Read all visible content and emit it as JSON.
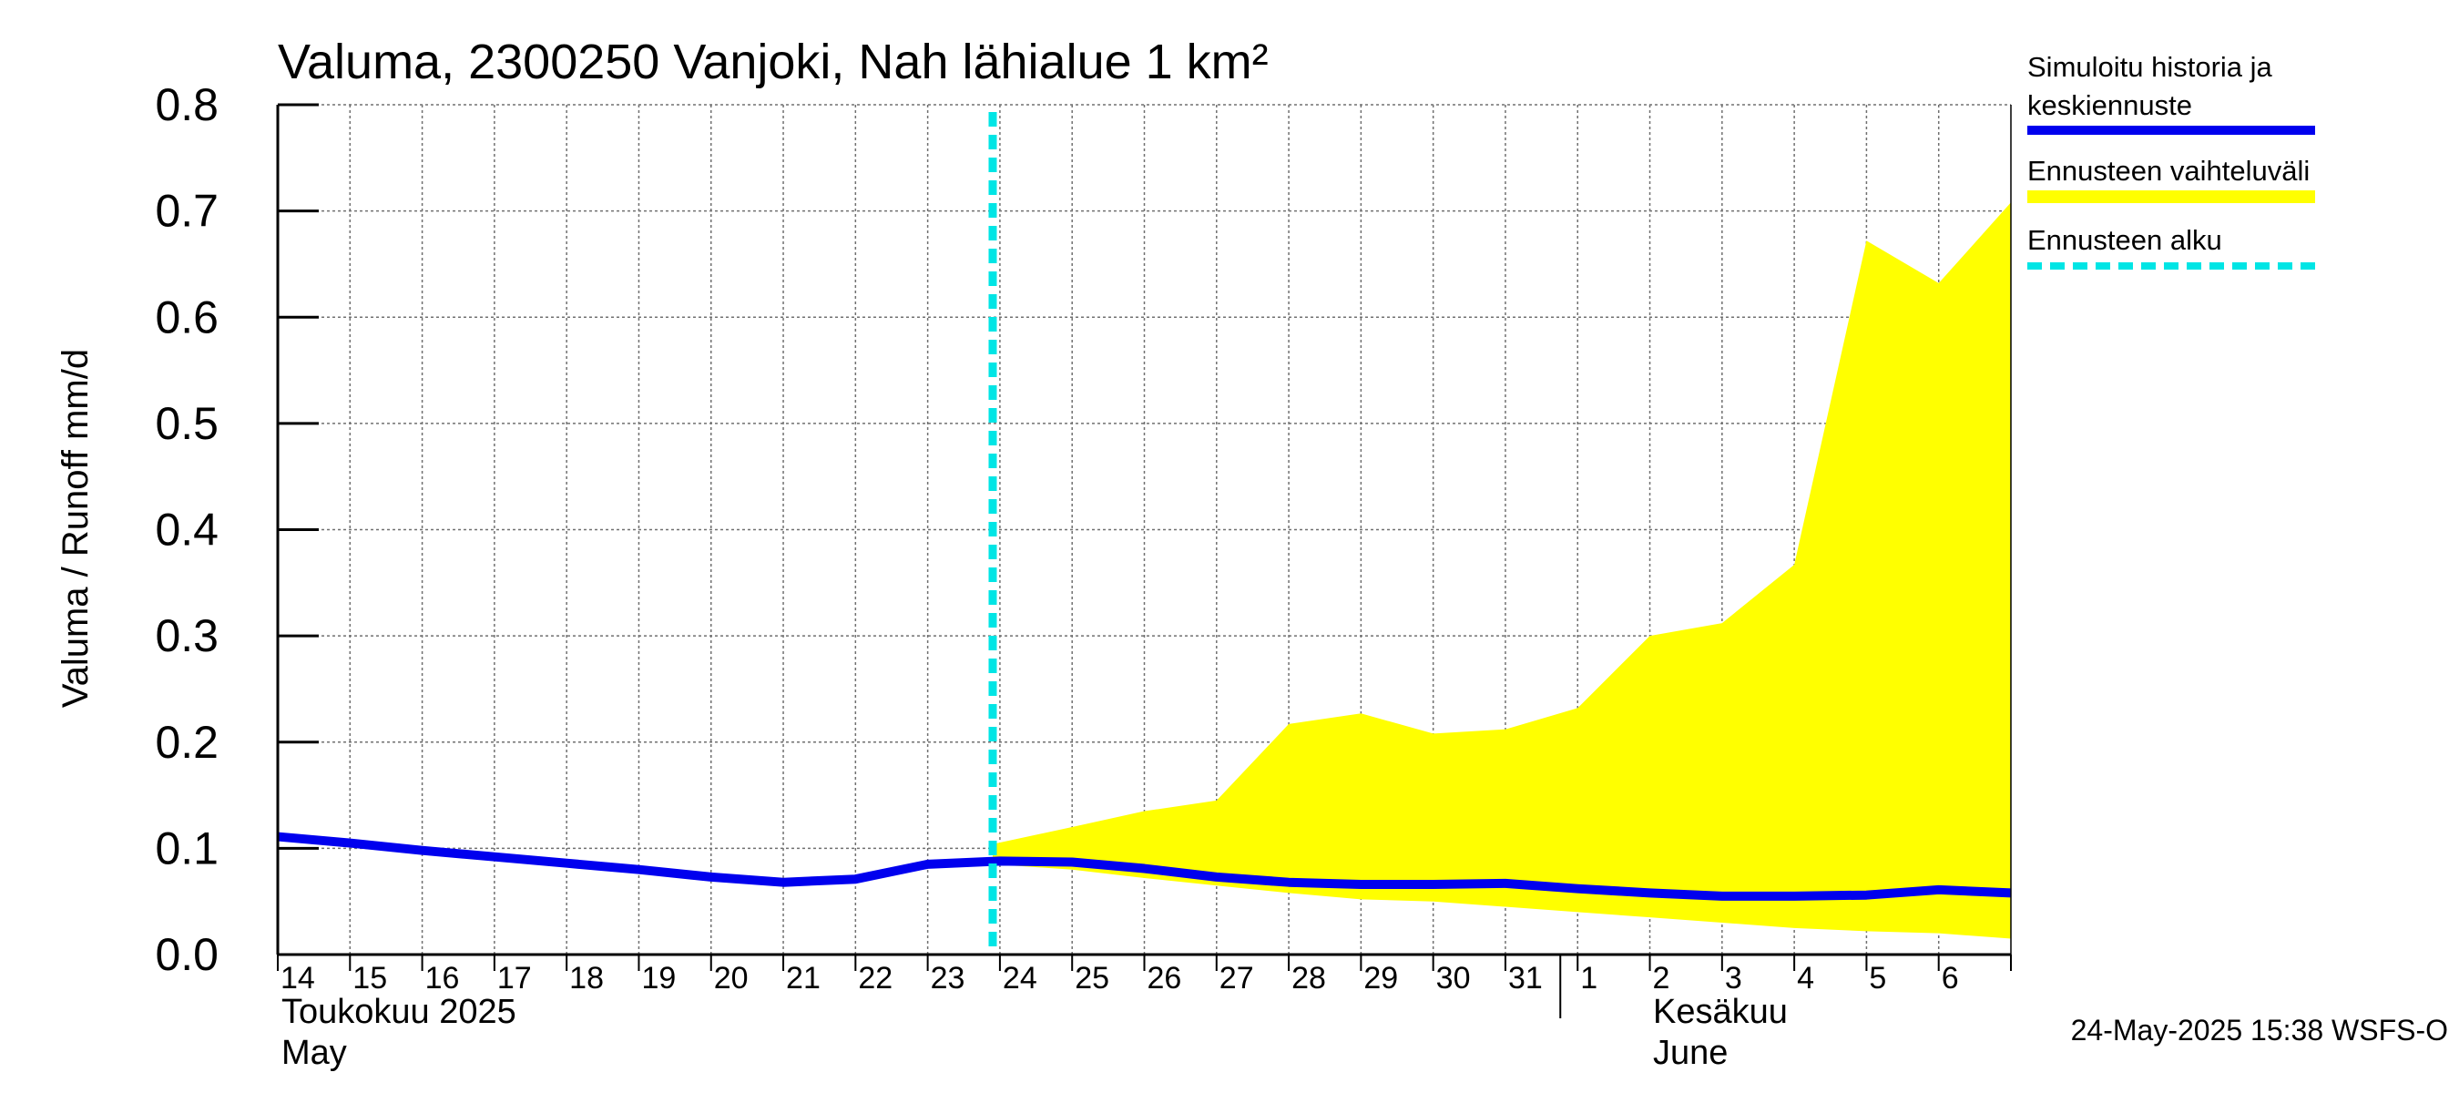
{
  "chart_data": {
    "type": "area",
    "title": "Valuma, 2300250 Vanjoki, Nah lähialue 1 km²",
    "ylabel": "Valuma / Runoff    mm/d",
    "ylim": [
      0,
      0.8
    ],
    "yticks": [
      "0.0",
      "0.1",
      "0.2",
      "0.3",
      "0.4",
      "0.5",
      "0.6",
      "0.7",
      "0.8"
    ],
    "x_day_labels": [
      "14",
      "15",
      "16",
      "17",
      "18",
      "19",
      "20",
      "21",
      "22",
      "23",
      "24",
      "25",
      "26",
      "27",
      "28",
      "29",
      "30",
      "31",
      "1",
      "2",
      "3",
      "4",
      "5",
      "6"
    ],
    "month_labels": {
      "may_fi": "Toukokuu  2025",
      "may_en": "May",
      "june_fi": "Kesäkuu",
      "june_en": "June"
    },
    "forecast_start_day": 23.9,
    "series": [
      {
        "name": "Simuloitu historia ja keskiennuste",
        "color": "#0000ee",
        "x": [
          14,
          15,
          16,
          17,
          18,
          19,
          20,
          21,
          22,
          23,
          24,
          25,
          26,
          27,
          28,
          29,
          30,
          31,
          32,
          33,
          34,
          35,
          36,
          37,
          38
        ],
        "values": [
          0.111,
          0.105,
          0.098,
          0.092,
          0.086,
          0.08,
          0.073,
          0.068,
          0.071,
          0.085,
          0.088,
          0.087,
          0.081,
          0.073,
          0.068,
          0.066,
          0.066,
          0.067,
          0.062,
          0.058,
          0.055,
          0.055,
          0.056,
          0.061,
          0.058
        ]
      },
      {
        "name": "Ennusteen vaihteluväli",
        "color": "#ffff00",
        "x": [
          23.9,
          25,
          26,
          27,
          28,
          29,
          30,
          31,
          32,
          33,
          34,
          35,
          36,
          37,
          38
        ],
        "upper": [
          0.104,
          0.12,
          0.135,
          0.145,
          0.217,
          0.227,
          0.208,
          0.212,
          0.232,
          0.3,
          0.312,
          0.367,
          0.672,
          0.632,
          0.708
        ],
        "lower": [
          0.085,
          0.08,
          0.072,
          0.065,
          0.058,
          0.052,
          0.05,
          0.045,
          0.04,
          0.035,
          0.03,
          0.025,
          0.022,
          0.02,
          0.015
        ]
      },
      {
        "name": "Ennusteen alku",
        "color": "#00e5e5"
      }
    ],
    "legend": [
      {
        "label_line1": "Simuloitu historia ja",
        "label_line2": "keskiennuste",
        "color": "#0000ee",
        "style": "solid"
      },
      {
        "label_line1": "Ennusteen vaihteluväli",
        "label_line2": "",
        "color": "#ffff00",
        "style": "solid"
      },
      {
        "label_line1": "Ennusteen alku",
        "label_line2": "",
        "color": "#00e5e5",
        "style": "dashed"
      }
    ]
  },
  "footer": "24-May-2025 15:38 WSFS-O"
}
